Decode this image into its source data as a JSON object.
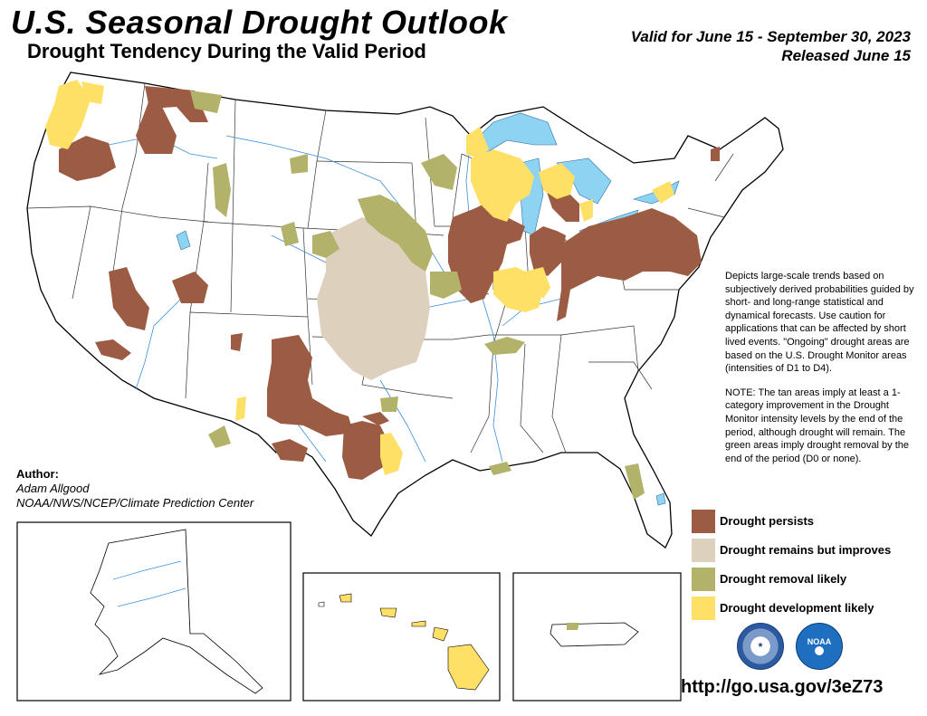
{
  "title": "U.S. Seasonal Drought Outlook",
  "subtitle": "Drought Tendency During the Valid Period",
  "valid_line": "Valid for June 15 - September 30, 2023",
  "released_line": "Released June 15",
  "author": {
    "label": "Author:",
    "name": "Adam Allgood",
    "org": "NOAA/NWS/NCEP/Climate Prediction Center"
  },
  "description": "Depicts large-scale trends based on subjectively derived probabilities guided by short- and long-range statistical and dynamical forecasts. Use caution for applications that can be affected by short lived events. \"Ongoing\" drought areas are based on the U.S. Drought Monitor areas (intensities of D1 to D4).",
  "note": "NOTE: The tan areas imply at least a 1-category improvement in the Drought Monitor intensity levels by the end of the period, although drought will remain. The green areas imply drought removal by the end of the period (D0 or none).",
  "legend": [
    {
      "label": "Drought persists",
      "color": "#9c5b43"
    },
    {
      "label": "Drought remains but improves",
      "color": "#ddd1bd"
    },
    {
      "label": "Drought removal likely",
      "color": "#b2b26b"
    },
    {
      "label": "Drought development likely",
      "color": "#ffe066"
    }
  ],
  "water_color": "#8fd3f2",
  "url": "http://go.usa.gov/3eZ73"
}
